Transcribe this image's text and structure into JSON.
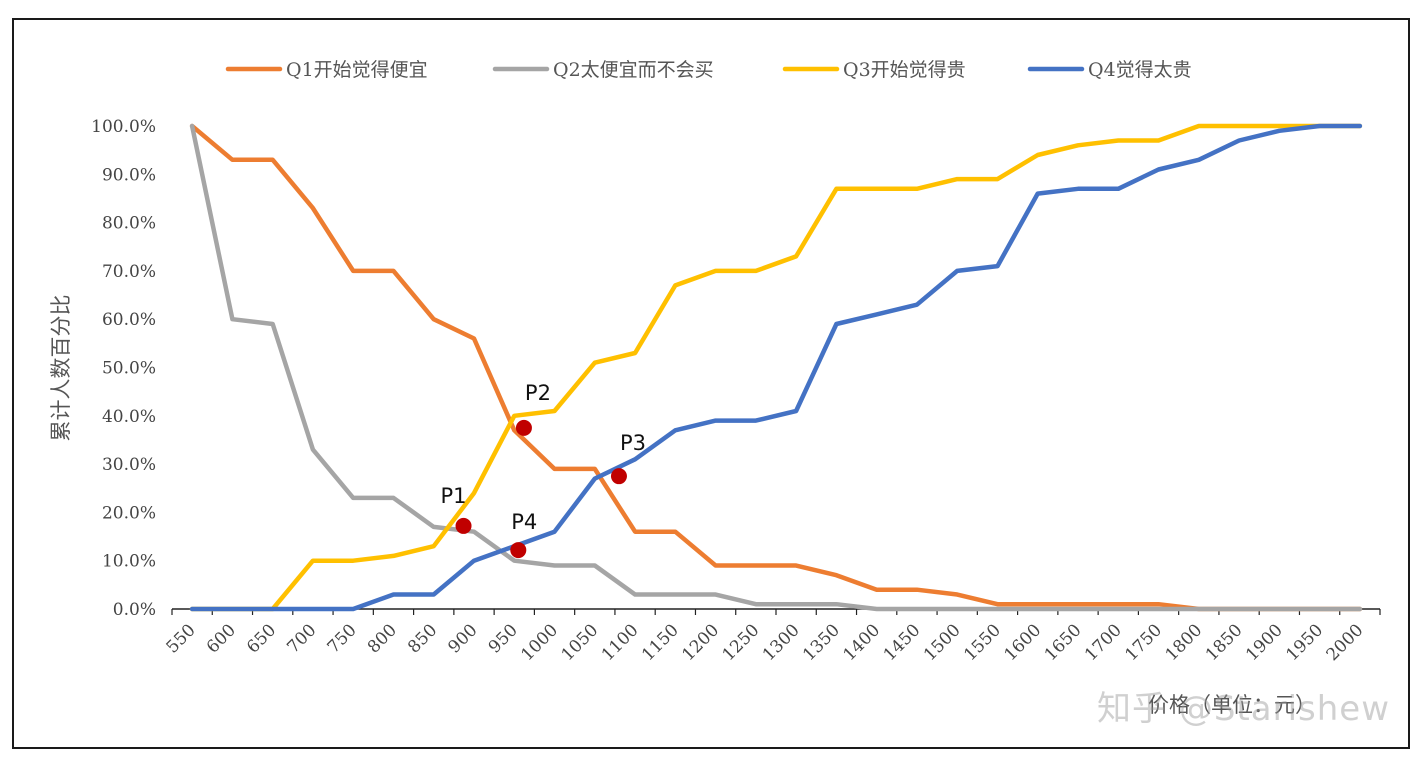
{
  "chart_data": {
    "type": "line",
    "x_label": "价格（单位：元）",
    "y_label": "累计人数百分比",
    "ylim": [
      0,
      100
    ],
    "y_ticks": [
      "0.0%",
      "10.0%",
      "20.0%",
      "30.0%",
      "40.0%",
      "50.0%",
      "60.0%",
      "70.0%",
      "80.0%",
      "90.0%",
      "100.0%"
    ],
    "x": [
      550,
      600,
      650,
      700,
      750,
      800,
      850,
      900,
      950,
      1000,
      1050,
      1100,
      1150,
      1200,
      1250,
      1300,
      1350,
      1400,
      1450,
      1500,
      1550,
      1600,
      1650,
      1700,
      1750,
      1800,
      1850,
      1900,
      1950,
      2000
    ],
    "series": [
      {
        "name": "Q1开始觉得便宜",
        "color": "#ED7D31",
        "values": [
          100,
          93,
          93,
          83,
          70,
          70,
          60,
          56,
          37,
          29,
          29,
          16,
          16,
          9,
          9,
          9,
          7,
          4,
          4,
          3,
          1,
          1,
          1,
          1,
          1,
          0,
          0,
          0,
          0,
          0
        ]
      },
      {
        "name": "Q2太便宜而不会买",
        "color": "#A5A5A5",
        "values": [
          100,
          60,
          59,
          33,
          23,
          23,
          17,
          16,
          10,
          9,
          9,
          3,
          3,
          3,
          1,
          1,
          1,
          0,
          0,
          0,
          0,
          0,
          0,
          0,
          0,
          0,
          0,
          0,
          0,
          0
        ]
      },
      {
        "name": "Q3开始觉得贵",
        "color": "#FFC000",
        "values": [
          0,
          0,
          0,
          10,
          10,
          11,
          13,
          24,
          40,
          41,
          51,
          53,
          67,
          70,
          70,
          73,
          87,
          87,
          87,
          89,
          89,
          94,
          96,
          97,
          97,
          100,
          100,
          100,
          100,
          100
        ]
      },
      {
        "name": "Q4觉得太贵",
        "color": "#4472C4",
        "values": [
          0,
          0,
          0,
          0,
          0,
          3,
          3,
          10,
          13,
          16,
          27,
          31,
          37,
          39,
          39,
          41,
          59,
          61,
          63,
          70,
          71,
          86,
          87,
          87,
          91,
          93,
          97,
          99,
          100,
          100
        ]
      }
    ],
    "annotations": [
      {
        "label": "P1",
        "x": 887,
        "y": 17.2
      },
      {
        "label": "P2",
        "x": 962,
        "y": 37.5
      },
      {
        "label": "P3",
        "x": 1080,
        "y": 27.5
      },
      {
        "label": "P4",
        "x": 955,
        "y": 12.2
      }
    ],
    "marker_color": "#C00000",
    "legend_position": "top"
  },
  "watermark": "知乎 @Starishew"
}
